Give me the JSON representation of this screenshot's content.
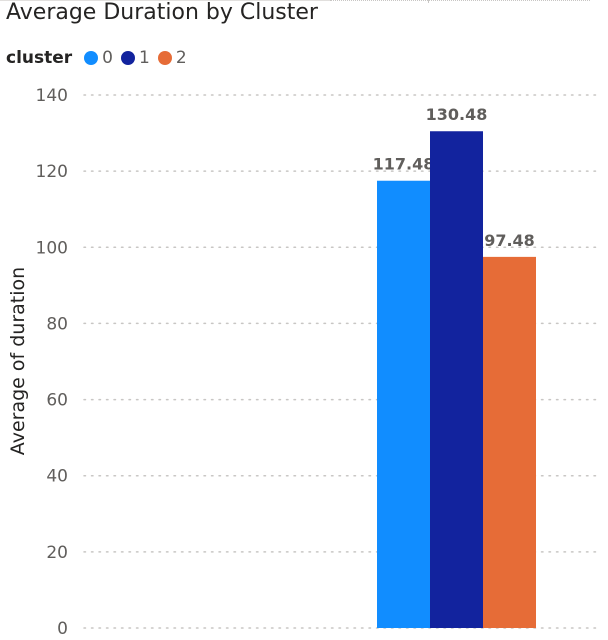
{
  "chart_data": {
    "type": "bar",
    "title": "Average Duration by Cluster",
    "ylabel": "Average of duration",
    "xlabel": "",
    "legend_title": "cluster",
    "legend_position": "top-left",
    "grid": true,
    "ylim": [
      0,
      140
    ],
    "yticks": [
      0,
      20,
      40,
      60,
      80,
      100,
      120,
      140
    ],
    "categories": [
      ""
    ],
    "series": [
      {
        "name": "0",
        "values": [
          117.48
        ],
        "label": "117.48",
        "color": "#118DFF"
      },
      {
        "name": "1",
        "values": [
          130.48
        ],
        "label": "130.48",
        "color": "#12239E"
      },
      {
        "name": "2",
        "values": [
          97.48
        ],
        "label": "97.48",
        "color": "#E66C37"
      }
    ]
  }
}
